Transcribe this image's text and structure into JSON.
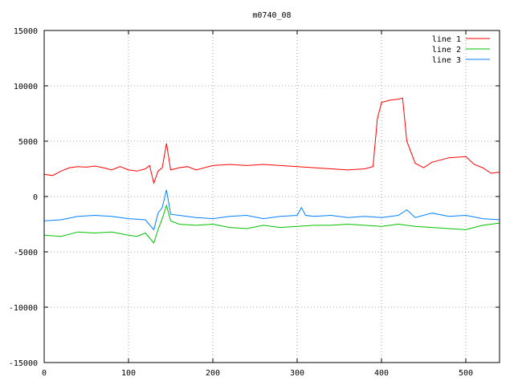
{
  "chart_data": {
    "type": "line",
    "title": "m0740_08",
    "xlim": [
      0,
      540
    ],
    "ylim": [
      -15000,
      15000
    ],
    "xticks": [
      0,
      100,
      200,
      300,
      400,
      500
    ],
    "yticks": [
      -15000,
      -10000,
      -5000,
      0,
      5000,
      10000,
      15000
    ],
    "grid": true,
    "legend_position": "top-right",
    "series": [
      {
        "name": "line 1",
        "color": "#ff0000",
        "points": [
          [
            0,
            2000
          ],
          [
            10,
            1900
          ],
          [
            20,
            2300
          ],
          [
            30,
            2600
          ],
          [
            40,
            2700
          ],
          [
            50,
            2650
          ],
          [
            60,
            2750
          ],
          [
            70,
            2600
          ],
          [
            80,
            2400
          ],
          [
            90,
            2700
          ],
          [
            100,
            2400
          ],
          [
            110,
            2300
          ],
          [
            120,
            2500
          ],
          [
            125,
            2800
          ],
          [
            130,
            1200
          ],
          [
            135,
            2300
          ],
          [
            140,
            2600
          ],
          [
            145,
            4800
          ],
          [
            150,
            2400
          ],
          [
            160,
            2600
          ],
          [
            170,
            2700
          ],
          [
            180,
            2400
          ],
          [
            200,
            2800
          ],
          [
            220,
            2900
          ],
          [
            240,
            2800
          ],
          [
            260,
            2900
          ],
          [
            280,
            2800
          ],
          [
            300,
            2700
          ],
          [
            320,
            2600
          ],
          [
            340,
            2500
          ],
          [
            360,
            2400
          ],
          [
            380,
            2500
          ],
          [
            390,
            2700
          ],
          [
            395,
            7000
          ],
          [
            400,
            8500
          ],
          [
            410,
            8700
          ],
          [
            420,
            8800
          ],
          [
            425,
            8900
          ],
          [
            430,
            5000
          ],
          [
            440,
            3000
          ],
          [
            450,
            2600
          ],
          [
            460,
            3100
          ],
          [
            480,
            3500
          ],
          [
            500,
            3600
          ],
          [
            510,
            2900
          ],
          [
            520,
            2600
          ],
          [
            530,
            2100
          ],
          [
            540,
            2200
          ]
        ]
      },
      {
        "name": "line 2",
        "color": "#00c000",
        "points": [
          [
            0,
            -3500
          ],
          [
            20,
            -3600
          ],
          [
            40,
            -3200
          ],
          [
            60,
            -3300
          ],
          [
            80,
            -3200
          ],
          [
            100,
            -3500
          ],
          [
            110,
            -3600
          ],
          [
            120,
            -3300
          ],
          [
            130,
            -4200
          ],
          [
            135,
            -3000
          ],
          [
            140,
            -2000
          ],
          [
            145,
            -800
          ],
          [
            150,
            -2200
          ],
          [
            160,
            -2500
          ],
          [
            180,
            -2600
          ],
          [
            200,
            -2500
          ],
          [
            220,
            -2800
          ],
          [
            240,
            -2900
          ],
          [
            260,
            -2600
          ],
          [
            280,
            -2800
          ],
          [
            300,
            -2700
          ],
          [
            320,
            -2600
          ],
          [
            340,
            -2600
          ],
          [
            360,
            -2500
          ],
          [
            380,
            -2600
          ],
          [
            400,
            -2700
          ],
          [
            420,
            -2500
          ],
          [
            440,
            -2700
          ],
          [
            460,
            -2800
          ],
          [
            480,
            -2900
          ],
          [
            500,
            -3000
          ],
          [
            520,
            -2600
          ],
          [
            540,
            -2400
          ]
        ]
      },
      {
        "name": "line 3",
        "color": "#0080ff",
        "points": [
          [
            0,
            -2200
          ],
          [
            20,
            -2100
          ],
          [
            40,
            -1800
          ],
          [
            60,
            -1700
          ],
          [
            80,
            -1800
          ],
          [
            100,
            -2000
          ],
          [
            120,
            -2100
          ],
          [
            130,
            -3000
          ],
          [
            135,
            -1500
          ],
          [
            140,
            -1000
          ],
          [
            145,
            600
          ],
          [
            150,
            -1600
          ],
          [
            160,
            -1700
          ],
          [
            180,
            -1900
          ],
          [
            200,
            -2000
          ],
          [
            220,
            -1800
          ],
          [
            240,
            -1700
          ],
          [
            260,
            -2000
          ],
          [
            280,
            -1800
          ],
          [
            300,
            -1700
          ],
          [
            305,
            -1000
          ],
          [
            310,
            -1700
          ],
          [
            320,
            -1800
          ],
          [
            340,
            -1700
          ],
          [
            360,
            -1900
          ],
          [
            380,
            -1800
          ],
          [
            400,
            -1900
          ],
          [
            420,
            -1700
          ],
          [
            430,
            -1200
          ],
          [
            440,
            -1900
          ],
          [
            460,
            -1500
          ],
          [
            480,
            -1800
          ],
          [
            500,
            -1700
          ],
          [
            520,
            -2000
          ],
          [
            540,
            -2100
          ]
        ]
      }
    ]
  }
}
